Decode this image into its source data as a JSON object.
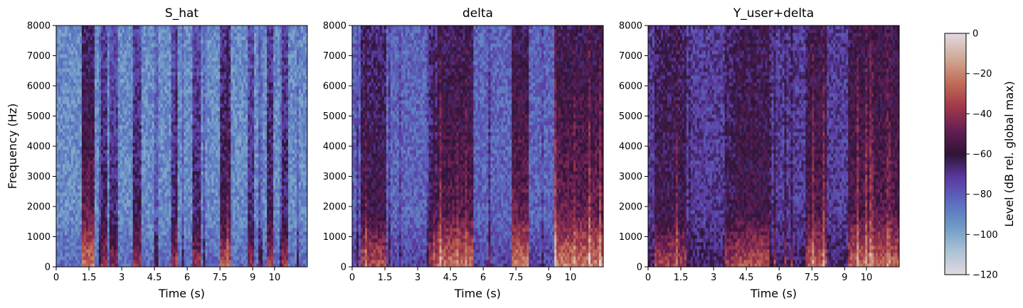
{
  "chart_data": [
    {
      "type": "heatmap",
      "title": "S_hat",
      "xlabel": "Time (s)",
      "ylabel": "Frequency (Hz)",
      "xlim": [
        0,
        11.5
      ],
      "ylim": [
        0,
        8000
      ],
      "x_ticks": [
        0,
        1.5,
        3,
        4.5,
        6,
        7.5,
        9,
        10
      ],
      "x_tick_labels": [
        "0",
        "1.5",
        "3",
        "4.5",
        "6",
        "7.5",
        "9",
        "10"
      ],
      "y_ticks": [
        0,
        1000,
        2000,
        3000,
        4000,
        5000,
        6000,
        7000,
        8000
      ],
      "y_tick_labels": [
        "0",
        "1000",
        "2000",
        "3000",
        "4000",
        "5000",
        "6000",
        "7000",
        "8000"
      ],
      "overall_level_db": -92,
      "vertical_bands": [
        [
          1.2,
          1.8,
          -45
        ],
        [
          2.0,
          2.3,
          -60
        ],
        [
          2.4,
          2.8,
          -65
        ],
        [
          3.5,
          3.9,
          -60
        ],
        [
          5.3,
          5.6,
          -65
        ],
        [
          6.2,
          6.6,
          -62
        ],
        [
          7.5,
          8.0,
          -55
        ],
        [
          8.8,
          9.1,
          -65
        ],
        [
          9.6,
          9.9,
          -58
        ],
        [
          10.3,
          10.6,
          -60
        ]
      ],
      "low_freq_emphasis": true
    },
    {
      "type": "heatmap",
      "title": "delta",
      "xlabel": "Time (s)",
      "ylabel": "",
      "xlim": [
        0,
        11.5
      ],
      "ylim": [
        0,
        8000
      ],
      "x_ticks": [
        0,
        1.5,
        3,
        4.5,
        6,
        7.5,
        9,
        10
      ],
      "x_tick_labels": [
        "0",
        "1.5",
        "3",
        "4.5",
        "6",
        "7.5",
        "9",
        "10"
      ],
      "y_ticks": [
        0,
        1000,
        2000,
        3000,
        4000,
        5000,
        6000,
        7000,
        8000
      ],
      "y_tick_labels": [
        "0",
        "1000",
        "2000",
        "3000",
        "4000",
        "5000",
        "6000",
        "7000",
        "8000"
      ],
      "overall_level_db": -82,
      "vertical_bands": [
        [
          0.4,
          1.6,
          -55
        ],
        [
          3.5,
          3.9,
          -60
        ],
        [
          3.9,
          5.6,
          -48
        ],
        [
          7.3,
          8.1,
          -45
        ],
        [
          9.3,
          11.5,
          -45
        ]
      ],
      "low_freq_emphasis": true
    },
    {
      "type": "heatmap",
      "title": "Y_user+delta",
      "xlabel": "Time (s)",
      "ylabel": "",
      "xlim": [
        0,
        11.5
      ],
      "ylim": [
        0,
        8000
      ],
      "x_ticks": [
        0,
        1.5,
        3,
        4.5,
        6,
        7.5,
        9,
        10
      ],
      "x_tick_labels": [
        "0",
        "1.5",
        "3",
        "4.5",
        "6",
        "7.5",
        "9",
        "10"
      ],
      "y_ticks": [
        0,
        1000,
        2000,
        3000,
        4000,
        5000,
        6000,
        7000,
        8000
      ],
      "y_tick_labels": [
        "0",
        "1000",
        "2000",
        "3000",
        "4000",
        "5000",
        "6000",
        "7000",
        "8000"
      ],
      "overall_level_db": -72,
      "vertical_bands": [
        [
          0.3,
          1.8,
          -58
        ],
        [
          3.5,
          4.0,
          -60
        ],
        [
          4.0,
          5.6,
          -55
        ],
        [
          7.3,
          8.2,
          -52
        ],
        [
          9.3,
          11.5,
          -50
        ]
      ],
      "low_freq_emphasis": true
    }
  ],
  "colorbar": {
    "label": "Level (dB rel. global max)",
    "range": [
      -120,
      0
    ],
    "ticks": [
      0,
      -20,
      -40,
      -60,
      -80,
      -100,
      -120
    ],
    "tick_labels": [
      "0",
      "−20",
      "−40",
      "−60",
      "−80",
      "−100",
      "−120"
    ],
    "colormap": "twilight",
    "stops": [
      {
        "db": -120,
        "color": "#e2d9e2"
      },
      {
        "db": -108,
        "color": "#a9c1d5"
      },
      {
        "db": -96,
        "color": "#6e9ac6"
      },
      {
        "db": -84,
        "color": "#5b6cbf"
      },
      {
        "db": -72,
        "color": "#5b3aa1"
      },
      {
        "db": -60,
        "color": "#2f1436"
      },
      {
        "db": -48,
        "color": "#661f56"
      },
      {
        "db": -36,
        "color": "#a23a48"
      },
      {
        "db": -24,
        "color": "#c2705a"
      },
      {
        "db": -12,
        "color": "#d1ab99"
      },
      {
        "db": 0,
        "color": "#e2d9e2"
      }
    ]
  }
}
